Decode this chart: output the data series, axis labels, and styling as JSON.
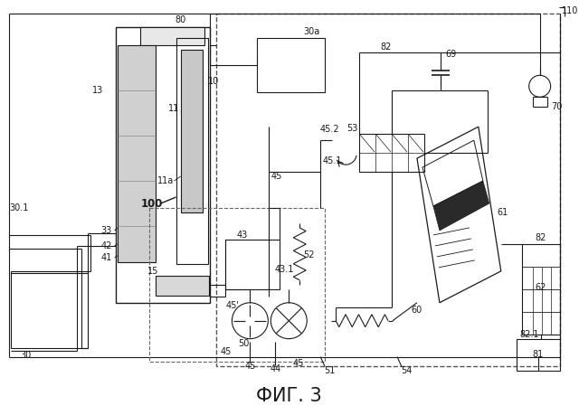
{
  "title": "ФИГ. 3",
  "title_fontsize": 15,
  "bg_color": "#ffffff",
  "line_color": "#1a1a1a",
  "fig_width": 6.4,
  "fig_height": 4.59,
  "label_fontsize": 7.5
}
